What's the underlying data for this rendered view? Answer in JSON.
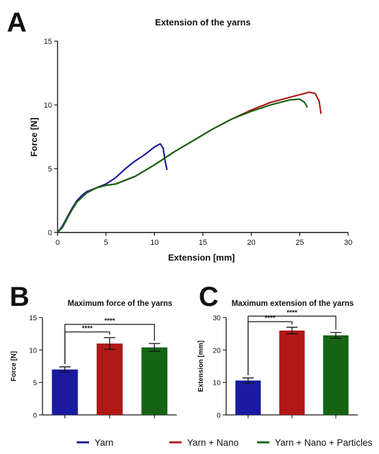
{
  "colors": {
    "yarn": "#1a1aa0",
    "nano": "#b01818",
    "particles": "#146414"
  },
  "legend": [
    {
      "name": "Yarn",
      "color": "#1a1aa0"
    },
    {
      "name": "Yarn + Nano",
      "color": "#b01818"
    },
    {
      "name": "Yarn + Nano + Particles",
      "color": "#146414"
    }
  ],
  "chart_data": [
    {
      "panel": "A",
      "type": "line",
      "title": "Extension of the yarns",
      "xlabel": "Extension [mm]",
      "ylabel": "Force [N]",
      "xlim": [
        0,
        30
      ],
      "ylim": [
        0,
        15
      ],
      "xticks": [
        "0",
        "5",
        "10",
        "15",
        "20",
        "25",
        "30"
      ],
      "yticks": [
        "0",
        "5",
        "10",
        "15"
      ],
      "grid": false,
      "series": [
        {
          "name": "Yarn",
          "color": "#1a1aa0",
          "x": [
            0,
            0.5,
            1,
            1.5,
            2,
            2.5,
            3,
            4,
            5,
            6,
            7,
            8,
            9,
            10,
            10.6,
            10.9,
            11.1,
            11.3
          ],
          "y": [
            0,
            0.5,
            1.2,
            1.9,
            2.5,
            2.9,
            3.2,
            3.5,
            3.8,
            4.3,
            5.0,
            5.6,
            6.1,
            6.7,
            6.95,
            6.6,
            5.6,
            4.9
          ]
        },
        {
          "name": "Yarn + Nano",
          "color": "#b01818",
          "x": [
            0,
            0.5,
            1,
            1.5,
            2,
            3,
            4,
            5,
            6,
            8,
            10,
            12,
            14,
            16,
            18,
            20,
            22,
            24,
            25,
            26,
            26.6,
            27,
            27.2
          ],
          "y": [
            0,
            0.4,
            1.1,
            1.8,
            2.4,
            3.1,
            3.5,
            3.7,
            3.8,
            4.4,
            5.3,
            6.3,
            7.2,
            8.1,
            8.9,
            9.6,
            10.2,
            10.6,
            10.8,
            11.0,
            10.9,
            10.3,
            9.3
          ]
        },
        {
          "name": "Yarn + Nano + Particles",
          "color": "#146414",
          "x": [
            0,
            0.5,
            1,
            1.5,
            2,
            3,
            4,
            5,
            6,
            8,
            10,
            12,
            14,
            16,
            18,
            20,
            22,
            24,
            25,
            25.5,
            25.8
          ],
          "y": [
            0,
            0.4,
            1.1,
            1.8,
            2.4,
            3.1,
            3.5,
            3.7,
            3.8,
            4.4,
            5.3,
            6.3,
            7.2,
            8.1,
            8.9,
            9.5,
            10.0,
            10.4,
            10.45,
            10.2,
            9.8
          ]
        }
      ]
    },
    {
      "panel": "B",
      "type": "bar",
      "title": "Maximum force of the yarns",
      "xlabel": "",
      "ylabel": "Force [N]",
      "ylim": [
        0,
        15
      ],
      "yticks": [
        "0",
        "5",
        "10",
        "15"
      ],
      "categories": [
        "Yarn",
        "Yarn + Nano",
        "Yarn + Nano + Particles"
      ],
      "values": [
        7.0,
        11.0,
        10.4
      ],
      "errors": [
        0.4,
        0.9,
        0.6
      ],
      "colors": [
        "#1a1aa0",
        "#b01818",
        "#146414"
      ],
      "significance": [
        {
          "from": 0,
          "to": 1,
          "label": "****"
        },
        {
          "from": 0,
          "to": 2,
          "label": "****"
        }
      ]
    },
    {
      "panel": "C",
      "type": "bar",
      "title": "Maximum extension of the yarns",
      "xlabel": "",
      "ylabel": "Extension [mm]",
      "ylim": [
        0,
        30
      ],
      "yticks": [
        "0",
        "10",
        "20",
        "30"
      ],
      "categories": [
        "Yarn",
        "Yarn + Nano",
        "Yarn + Nano + Particles"
      ],
      "values": [
        10.6,
        26.0,
        24.5
      ],
      "errors": [
        0.8,
        1.0,
        0.9
      ],
      "colors": [
        "#1a1aa0",
        "#b01818",
        "#146414"
      ],
      "significance": [
        {
          "from": 0,
          "to": 1,
          "label": "****"
        },
        {
          "from": 0,
          "to": 2,
          "label": "****"
        }
      ]
    }
  ]
}
